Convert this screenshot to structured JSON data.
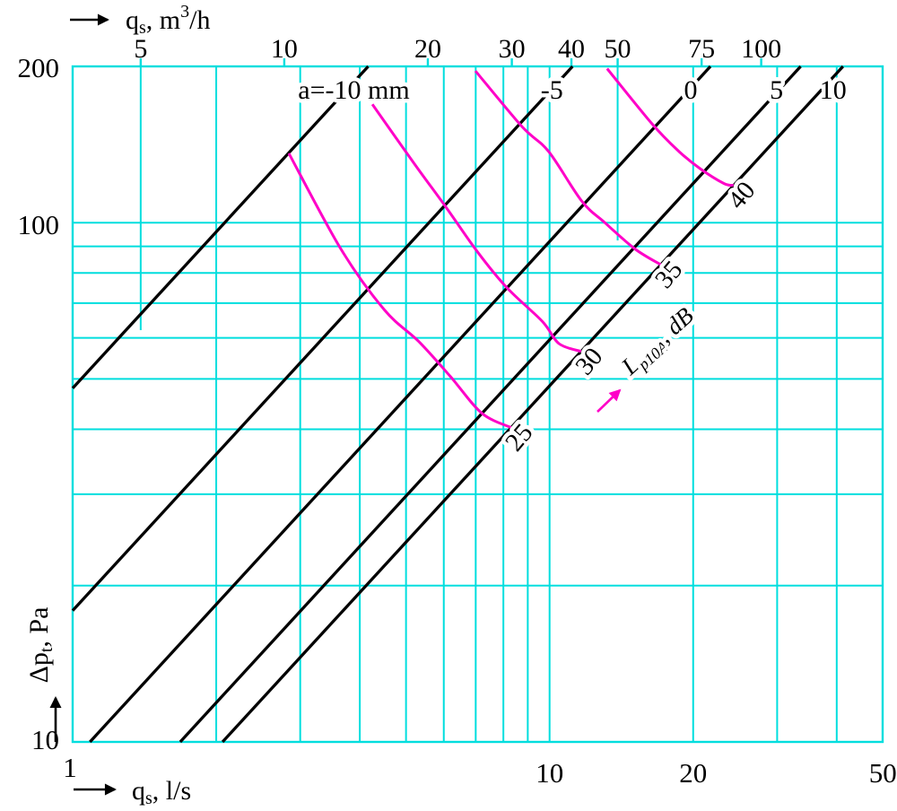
{
  "page": {
    "background": "#ffffff"
  },
  "chart_data": {
    "type": "line",
    "title": "",
    "description": "Log-log pressure drop vs airflow diagram for a damper: black lines = damper opening a (mm), magenta curves = sound pressure level Lp10A (dB)",
    "x_axis_bottom": {
      "label": "qs, l/s",
      "label_parts": [
        [
          "q",
          "b"
        ],
        [
          "s",
          "sub"
        ],
        [
          ", l/s",
          "b"
        ]
      ],
      "scale": "log",
      "range_ls": [
        1,
        50
      ],
      "tick_labels": [
        1,
        10,
        20,
        50
      ]
    },
    "x_axis_top": {
      "label": "qs, m³/h",
      "label_parts": [
        [
          "q",
          "b"
        ],
        [
          "s",
          "sub"
        ],
        [
          ", m",
          "b"
        ],
        [
          "3",
          "sup"
        ],
        [
          "/h",
          "b"
        ]
      ],
      "scale": "log",
      "ticks_m3h": [
        5,
        10,
        20,
        30,
        40,
        50,
        75,
        100
      ],
      "ls_to_m3h": 3.6
    },
    "y_axis": {
      "label": "Δpt, Pa",
      "label_parts": [
        [
          "Δp",
          "b"
        ],
        [
          "t",
          "sub"
        ],
        [
          ", Pa",
          "b"
        ]
      ],
      "scale": "log",
      "range_pa": [
        10,
        200
      ],
      "tick_labels": [
        200,
        100,
        10
      ]
    },
    "grid": {
      "color": "#00dede",
      "vertical_ls": [
        2,
        3,
        4,
        5,
        6,
        7,
        8,
        9,
        10,
        20,
        30,
        40
      ],
      "vertical_m3h_partial": [
        5,
        50
      ],
      "horizontal_pa": [
        20,
        30,
        40,
        50,
        60,
        70,
        80,
        90,
        100
      ],
      "grid_on": true
    },
    "damper_lines": {
      "color": "#000000",
      "relation": "dp_Pa = k * q_ls (straight lines, slope 1 on log-log)",
      "lines": [
        {
          "label": "a=-10 mm",
          "k": 48
        },
        {
          "label": "-5",
          "k": 17.9
        },
        {
          "label": "0",
          "k": 9.2
        },
        {
          "label": "5",
          "k": 5.95
        },
        {
          "label": "10",
          "k": 4.85
        }
      ]
    },
    "noise_curves": {
      "color": "#ff00c8",
      "axis_label": "Lp10A, dB",
      "axis_label_parts": [
        [
          "L",
          "b"
        ],
        [
          "p10A",
          "sub"
        ],
        [
          ", dB",
          "b"
        ]
      ],
      "curves": [
        {
          "label": "25",
          "points_q_dp": [
            [
              2.84,
              136
            ],
            [
              3.65,
              89
            ],
            [
              4.5,
              68
            ],
            [
              5.32,
              59
            ],
            [
              6.2,
              50.5
            ],
            [
              7.2,
              43
            ],
            [
              8.3,
              40.3
            ]
          ]
        },
        {
          "label": "30",
          "points_q_dp": [
            [
              4.25,
              169
            ],
            [
              5.2,
              130
            ],
            [
              6.07,
              107
            ],
            [
              7.05,
              88
            ],
            [
              8.13,
              75
            ],
            [
              9.66,
              64.5
            ],
            [
              10.46,
              58.5
            ],
            [
              11.64,
              56.5
            ]
          ]
        },
        {
          "label": "35",
          "points_q_dp": [
            [
              6.99,
              196
            ],
            [
              8.76,
              153
            ],
            [
              9.96,
              137
            ],
            [
              11.68,
              110
            ],
            [
              13.06,
              100
            ],
            [
              15.1,
              89
            ],
            [
              17.1,
              83
            ]
          ]
        },
        {
          "label": "40",
          "points_q_dp": [
            [
              13.2,
              198
            ],
            [
              16.4,
              155
            ],
            [
              18.7,
              137
            ],
            [
              20.7,
              127
            ],
            [
              23.2,
              119
            ],
            [
              24.3,
              118
            ]
          ]
        }
      ]
    }
  }
}
